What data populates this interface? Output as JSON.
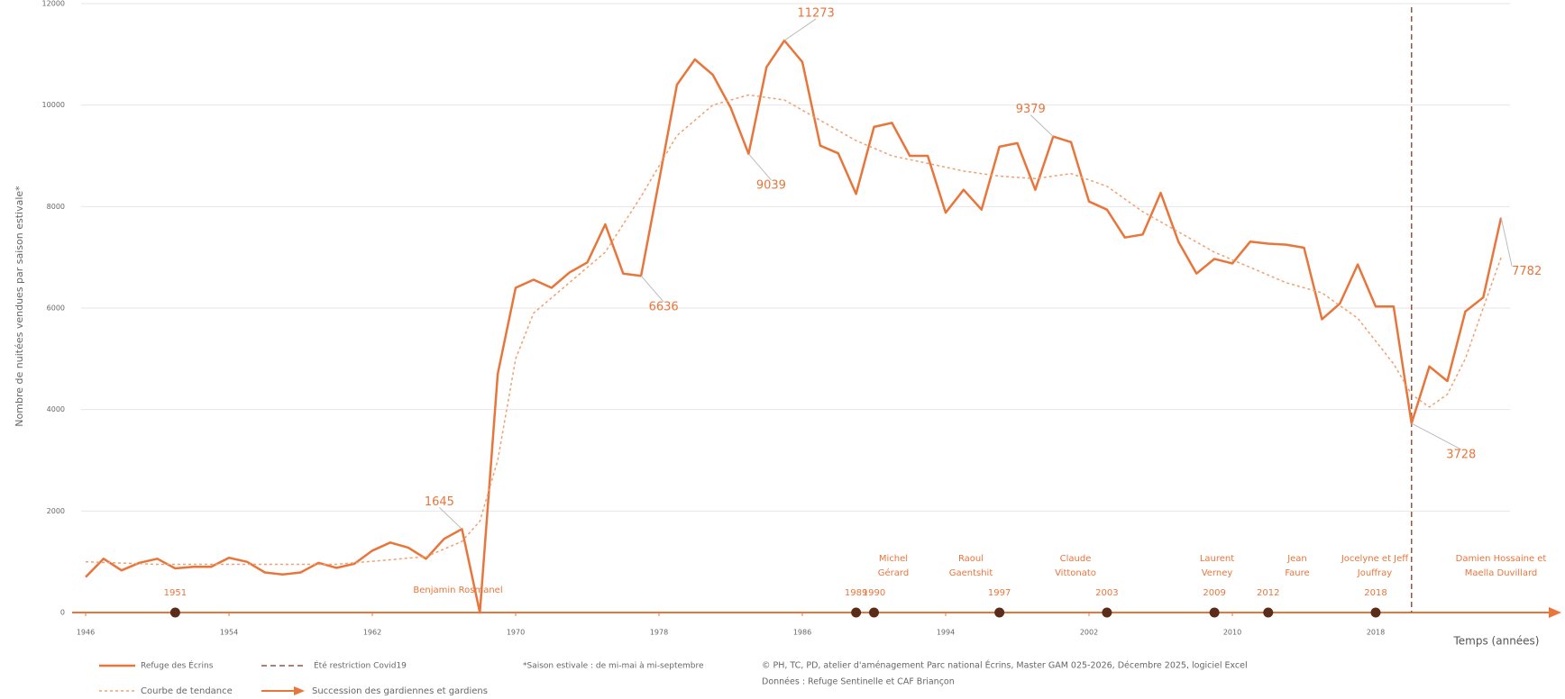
{
  "chart_data": {
    "type": "line",
    "y_label": "Nombre de nuitées vendues par saison estivale*",
    "x_label": "Temps (années)",
    "x": [
      1946,
      1947,
      1948,
      1949,
      1950,
      1951,
      1952,
      1953,
      1954,
      1955,
      1956,
      1957,
      1958,
      1959,
      1960,
      1961,
      1962,
      1963,
      1964,
      1965,
      1966,
      1967,
      1968,
      1969,
      1970,
      1971,
      1972,
      1973,
      1974,
      1975,
      1976,
      1977,
      1978,
      1979,
      1980,
      1981,
      1982,
      1983,
      1984,
      1985,
      1986,
      1987,
      1988,
      1989,
      1990,
      1991,
      1992,
      1993,
      1994,
      1995,
      1996,
      1997,
      1998,
      1999,
      2000,
      2001,
      2002,
      2003,
      2004,
      2005,
      2006,
      2007,
      2008,
      2009,
      2010,
      2011,
      2012,
      2013,
      2014,
      2015,
      2016,
      2017,
      2018,
      2019,
      2020,
      2021,
      2022,
      2023,
      2024,
      2025
    ],
    "series": [
      {
        "name": "Refuge des Écrins",
        "color": "#e8753a",
        "values": [
          700,
          1060,
          830,
          980,
          1060,
          870,
          900,
          900,
          1080,
          1000,
          790,
          750,
          790,
          980,
          880,
          960,
          1220,
          1380,
          1280,
          1060,
          1450,
          1645,
          0,
          4700,
          6400,
          6560,
          6400,
          6700,
          6900,
          7650,
          6680,
          6636,
          8500,
          10400,
          10900,
          10600,
          9950,
          9039,
          10750,
          11273,
          10850,
          9200,
          9050,
          8250,
          9570,
          9650,
          9000,
          9000,
          7880,
          8330,
          7940,
          9180,
          9250,
          8330,
          9379,
          9270,
          8100,
          7940,
          7390,
          7450,
          8270,
          7300,
          6680,
          6970,
          6880,
          7310,
          7270,
          7250,
          7190,
          5780,
          6090,
          6860,
          6030,
          6030,
          3728,
          4850,
          4560,
          5930,
          6210,
          7782
        ],
        "value_labels": [
          null,
          null,
          null,
          null,
          null,
          null,
          null,
          null,
          null,
          null,
          null,
          null,
          null,
          null,
          null,
          null,
          null,
          null,
          null,
          null,
          null,
          "1645",
          null,
          null,
          null,
          null,
          null,
          null,
          null,
          null,
          null,
          "6636",
          null,
          null,
          null,
          null,
          null,
          "9039",
          null,
          "11273",
          null,
          null,
          null,
          null,
          null,
          null,
          null,
          null,
          null,
          null,
          null,
          null,
          null,
          null,
          "9379",
          null,
          null,
          null,
          null,
          null,
          null,
          null,
          null,
          null,
          null,
          null,
          null,
          null,
          null,
          null,
          null,
          null,
          null,
          null,
          "3728",
          null,
          null,
          null,
          null,
          "7782"
        ]
      },
      {
        "name": "Courbe de tendance",
        "color": "#f0a070",
        "dashed": true,
        "x": [
          1946,
          1950,
          1955,
          1960,
          1965,
          1967,
          1968,
          1969,
          1970,
          1971,
          1973,
          1975,
          1977,
          1979,
          1981,
          1983,
          1985,
          1987,
          1989,
          1991,
          1993,
          1995,
          1997,
          1999,
          2001,
          2003,
          2005,
          2007,
          2009,
          2011,
          2013,
          2015,
          2017,
          2019,
          2020,
          2021,
          2022,
          2023,
          2025
        ],
        "values": [
          1000,
          950,
          950,
          950,
          1100,
          1400,
          1800,
          3000,
          5000,
          5900,
          6500,
          7100,
          8200,
          9400,
          10000,
          10200,
          10100,
          9700,
          9300,
          9000,
          8850,
          8700,
          8600,
          8550,
          8650,
          8400,
          7900,
          7500,
          7100,
          6800,
          6500,
          6300,
          5800,
          4900,
          4300,
          4050,
          4300,
          5000,
          7000
        ]
      }
    ],
    "xlim": [
      1946,
      2026
    ],
    "xticks": [
      1946,
      1954,
      1962,
      1970,
      1978,
      1986,
      1994,
      2002,
      2010,
      2018
    ],
    "ylim": [
      0,
      12000
    ],
    "yticks": [
      0,
      2000,
      4000,
      6000,
      8000,
      10000,
      12000
    ],
    "grid": true,
    "covid_line": {
      "x": 2020,
      "label": "Été restriction Covid19",
      "color": "#8a5a44"
    },
    "timeline": {
      "label": "Succession des gardiennes et gardiens",
      "years": [
        1951,
        1989,
        1990,
        1997,
        2003,
        2009,
        2012,
        2018
      ],
      "dot_color": "#5a2d1a",
      "guardians": [
        [
          "Benjamin Rosmanel"
        ],
        [
          "Michel",
          "Gérard"
        ],
        [
          "Raoul",
          "Gaentshit"
        ],
        [
          "Claude",
          "Vittonato"
        ],
        [
          "Laurent",
          "Verney"
        ],
        [
          "Jean",
          "Faure"
        ],
        [
          "Jocelyne et Jeff",
          "Jouffray"
        ],
        [
          "Damien Hossaine et",
          "Maella Duvillard"
        ]
      ]
    },
    "note": "*Saison estivale : de mi-mai à mi-septembre",
    "credits": [
      "© PH, TC, PD, atelier d'aménagement Parc national Écrins, Master GAM 025-2026, Décembre 2025, logiciel Excel",
      "Données : Refuge Sentinelle et CAF Briançon"
    ]
  }
}
